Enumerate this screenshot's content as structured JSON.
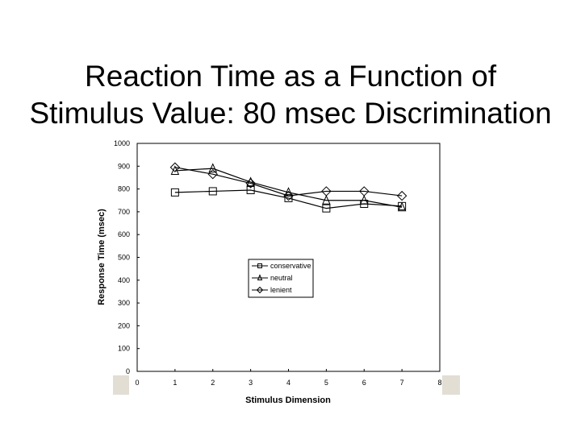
{
  "slide": {
    "title_line1": "Reaction Time as a Function of",
    "title_line2": "Stimulus Value: 80 msec Discrimination"
  },
  "chart_data": {
    "type": "line",
    "xlabel": "Stimulus Dimension",
    "ylabel": "Response Time (msec)",
    "xlim": [
      0,
      8
    ],
    "ylim": [
      0,
      1000
    ],
    "x_ticks": [
      "0",
      "1",
      "2",
      "3",
      "4",
      "5",
      "6",
      "7",
      "8"
    ],
    "y_ticks": [
      "0",
      "100",
      "200",
      "300",
      "400",
      "500",
      "600",
      "700",
      "800",
      "900",
      "1000"
    ],
    "x": [
      1,
      2,
      3,
      4,
      5,
      6,
      7
    ],
    "grid": false,
    "legend_position": "center-right",
    "series": [
      {
        "name": "conservative",
        "marker": "square",
        "values": [
          785,
          790,
          795,
          760,
          715,
          735,
          725
        ]
      },
      {
        "name": "neutral",
        "marker": "triangle",
        "values": [
          880,
          890,
          830,
          785,
          750,
          750,
          720
        ]
      },
      {
        "name": "lenient",
        "marker": "diamond",
        "values": [
          895,
          865,
          825,
          770,
          790,
          790,
          770
        ]
      }
    ],
    "colors": {
      "line": "#000000",
      "plot_border": "#000000",
      "strip": "#e2ded4"
    }
  }
}
